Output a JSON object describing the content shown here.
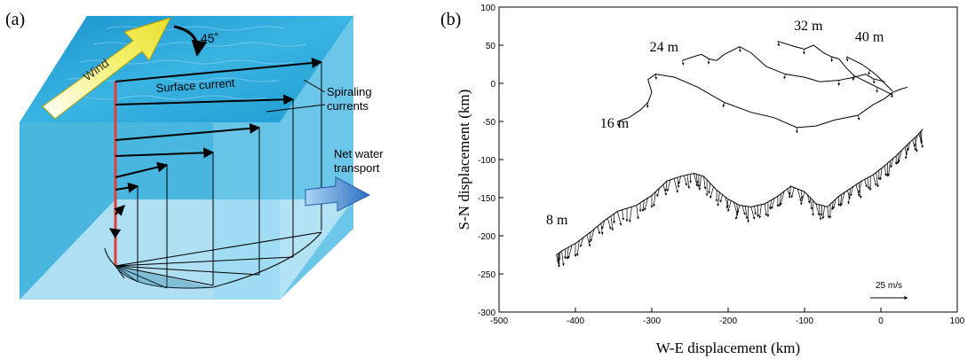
{
  "panel_a": {
    "label": "(a)",
    "wind_label": "Wind",
    "angle_label": "45˚",
    "surface_current_label": "Surface current",
    "spiraling_label_1": "Spiraling",
    "spiraling_label_2": "currents",
    "net_transport_label_1": "Net water",
    "net_transport_label_2": "transport",
    "colors": {
      "water_top": "#2aa8d8",
      "water_side": "#4fb8e2",
      "water_front": "#7fd0ef",
      "wind_arrow": "#f2ee55",
      "depth_line": "#e0403a",
      "transport_arrow": "#4a8fd8"
    }
  },
  "panel_b": {
    "label": "(b)",
    "xlabel": "W-E displacement (km)",
    "ylabel": "S-N displacement (km)",
    "scale_label": "25 m/s",
    "track_labels": [
      "8 m",
      "16 m",
      "24 m",
      "32 m",
      "40 m"
    ]
  },
  "chart_data": {
    "type": "line",
    "xlabel": "W-E displacement (km)",
    "ylabel": "S-N displacement (km)",
    "xlim": [
      -500,
      100
    ],
    "ylim": [
      -300,
      100
    ],
    "xticks": [
      -500,
      -400,
      -300,
      -200,
      -100,
      0,
      100
    ],
    "yticks": [
      -300,
      -250,
      -200,
      -150,
      -100,
      -50,
      0,
      50,
      100
    ],
    "series": [
      {
        "name": "8 m",
        "x": [
          -425,
          -418,
          -400,
          -380,
          -362,
          -345,
          -320,
          -300,
          -280,
          -262,
          -245,
          -232,
          -215,
          -200,
          -185,
          -170,
          -152,
          -135,
          -118,
          -100,
          -85,
          -70,
          -55,
          -40,
          -25,
          -10,
          5,
          20,
          35,
          48,
          55
        ],
        "y": [
          -225,
          -220,
          -210,
          -195,
          -180,
          -168,
          -160,
          -147,
          -128,
          -122,
          -118,
          -122,
          -140,
          -152,
          -160,
          -162,
          -158,
          -148,
          -135,
          -142,
          -158,
          -162,
          -148,
          -138,
          -128,
          -120,
          -108,
          -95,
          -80,
          -68,
          -60
        ]
      },
      {
        "name": "16 m",
        "x": [
          -345,
          -330,
          -315,
          -305,
          -300,
          -305,
          -295,
          -270,
          -240,
          -205,
          -170,
          -140,
          -110,
          -85,
          -60,
          -30,
          -10,
          5,
          15,
          25,
          35
        ],
        "y": [
          -50,
          -45,
          -35,
          -25,
          -12,
          5,
          12,
          8,
          -5,
          -25,
          -38,
          -45,
          -58,
          -56,
          -48,
          -42,
          -28,
          -20,
          -12,
          -8,
          -5
        ]
      },
      {
        "name": "24 m",
        "x": [
          -260,
          -245,
          -235,
          -225,
          -215,
          -205,
          -185,
          -170,
          -150,
          -125,
          -100,
          -80,
          -55,
          -35,
          -20,
          -10,
          5
        ],
        "y": [
          30,
          35,
          38,
          32,
          30,
          38,
          48,
          40,
          22,
          12,
          8,
          2,
          4,
          8,
          12,
          6,
          2
        ]
      },
      {
        "name": "32 m",
        "x": [
          -135,
          -125,
          -112,
          -100,
          -88,
          -75,
          -65,
          -55,
          -45,
          -35,
          -25,
          -15,
          -5,
          5,
          15
        ],
        "y": [
          55,
          52,
          48,
          45,
          50,
          40,
          35,
          32,
          20,
          10,
          5,
          0,
          -5,
          -10,
          -15
        ]
      },
      {
        "name": "40 m",
        "x": [
          -45,
          -35,
          -25,
          -15,
          -5,
          5,
          15
        ],
        "y": [
          35,
          30,
          25,
          18,
          10,
          0,
          -10
        ]
      }
    ],
    "annotations": [
      "25 m/s"
    ]
  }
}
